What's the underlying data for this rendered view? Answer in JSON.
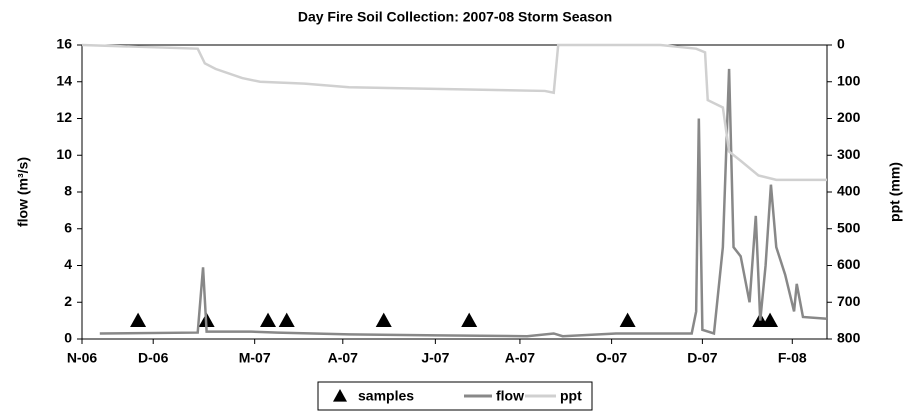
{
  "chart_data": {
    "type": "line",
    "title": "Day Fire Soil Collection: 2007-08 Storm Season",
    "ylabel": "flow (m³/s)",
    "y2label": "ppt (mm)",
    "xlim": [
      0,
      8.37
    ],
    "xticks": [
      {
        "value": 0,
        "label": "N-06"
      },
      {
        "value": 0.8,
        "label": "D-06"
      },
      {
        "value": 1.94,
        "label": "M-07"
      },
      {
        "value": 2.93,
        "label": "A-07"
      },
      {
        "value": 3.97,
        "label": "J-07"
      },
      {
        "value": 4.92,
        "label": "A-07"
      },
      {
        "value": 5.95,
        "label": "O-07"
      },
      {
        "value": 6.97,
        "label": "D-07"
      },
      {
        "value": 7.98,
        "label": "F-08"
      }
    ],
    "ylim": [
      0,
      16
    ],
    "yticks": [
      0,
      2,
      4,
      6,
      8,
      10,
      12,
      14,
      16
    ],
    "y2lim": [
      800,
      0
    ],
    "y2ticks": [
      0,
      100,
      200,
      300,
      400,
      500,
      600,
      700,
      800
    ],
    "legend": "bottom",
    "series": [
      {
        "name": "samples",
        "kind": "markers",
        "color": "#000000",
        "x": [
          0.63,
          1.4,
          2.09,
          2.3,
          3.39,
          4.35,
          6.13,
          7.62,
          7.73
        ],
        "values": [
          1,
          1,
          1,
          1,
          1,
          1,
          1,
          1,
          1
        ]
      },
      {
        "name": "flow",
        "color": "#888888",
        "x": [
          0.2,
          1.3,
          1.36,
          1.4,
          1.9,
          2.2,
          3,
          4,
          5,
          5.3,
          5.4,
          6,
          6.85,
          6.9,
          6.93,
          6.97,
          7.1,
          7.2,
          7.27,
          7.32,
          7.4,
          7.5,
          7.57,
          7.62,
          7.68,
          7.74,
          7.8,
          7.9,
          8.0,
          8.03,
          8.1,
          8.37
        ],
        "values": [
          0.3,
          0.35,
          3.9,
          0.4,
          0.4,
          0.35,
          0.25,
          0.2,
          0.15,
          0.3,
          0.15,
          0.3,
          0.3,
          1.5,
          12,
          0.5,
          0.3,
          5,
          14.7,
          5,
          4.5,
          2,
          6.7,
          1,
          4,
          8.4,
          5,
          3.5,
          1.5,
          3,
          1.2,
          1.1
        ]
      },
      {
        "name": "ppt",
        "axis": "y2",
        "color": "#d0d0d0",
        "x": [
          0,
          1.3,
          1.38,
          1.5,
          1.8,
          2.0,
          2.5,
          3.0,
          5.2,
          5.3,
          5.35,
          6.5,
          6.9,
          7.0,
          7.03,
          7.2,
          7.27,
          7.4,
          7.6,
          7.8,
          8.37
        ],
        "values": [
          0,
          10,
          50,
          65,
          90,
          100,
          105,
          115,
          125,
          130,
          0,
          0,
          10,
          20,
          150,
          170,
          290,
          315,
          355,
          367,
          367
        ]
      }
    ]
  }
}
